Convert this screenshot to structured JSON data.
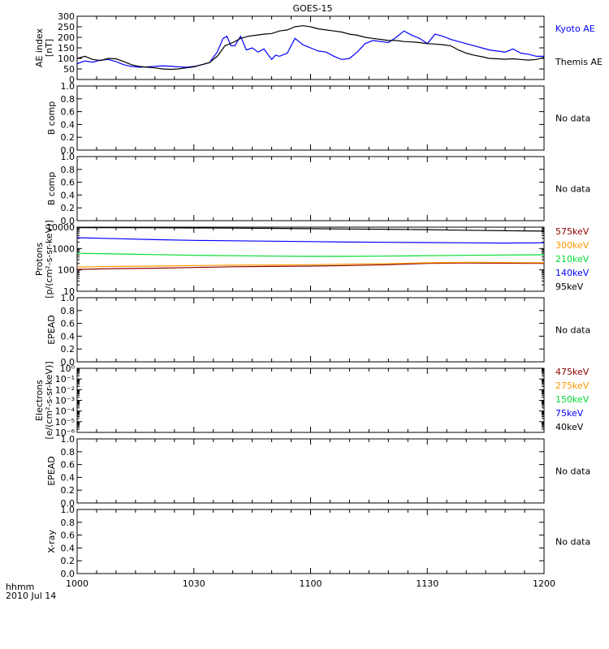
{
  "chart_data": {
    "title": "GOES-15",
    "type": "line",
    "x_axis": {
      "tick_labels": [
        "1000",
        "1030",
        "1100",
        "1130",
        "1200"
      ],
      "range_minutes": [
        0,
        120
      ],
      "time_label": "hhmm",
      "date_label": "2010 Jul 14"
    },
    "panels": [
      {
        "id": "ae",
        "ylabel_lines": [
          "AE index",
          "[nT]"
        ],
        "yscale": "linear",
        "ylim": [
          0,
          300
        ],
        "yticks": [
          "0",
          "50",
          "100",
          "150",
          "200",
          "250",
          "300"
        ],
        "ytick_values": [
          0,
          50,
          100,
          150,
          200,
          250,
          300
        ],
        "series": [
          {
            "name": "Kyoto AE",
            "color": "#0000ff",
            "x": [
              0,
              2,
              4,
              6,
              8,
              10,
              12,
              14,
              16,
              18,
              20,
              22,
              24,
              26,
              28,
              30,
              32,
              34,
              36,
              37.5,
              38.5,
              39.5,
              40.5,
              42,
              43.5,
              45,
              46.5,
              48,
              50,
              51,
              52,
              54,
              56,
              58,
              60,
              62,
              64,
              66,
              68,
              70,
              72,
              74,
              76,
              78,
              80,
              82,
              84,
              86,
              88,
              90,
              92,
              94,
              96,
              98,
              100,
              102,
              104,
              106,
              108,
              110,
              112,
              114,
              116,
              118,
              120
            ],
            "y": [
              75,
              88,
              82,
              92,
              95,
              85,
              70,
              62,
              58,
              60,
              62,
              65,
              63,
              60,
              58,
              62,
              70,
              80,
              130,
              195,
              205,
              160,
              160,
              205,
              140,
              150,
              130,
              145,
              95,
              115,
              110,
              125,
              195,
              165,
              150,
              135,
              130,
              110,
              95,
              100,
              130,
              170,
              185,
              180,
              175,
              200,
              230,
              210,
              195,
              170,
              215,
              205,
              190,
              180,
              170,
              160,
              150,
              140,
              135,
              130,
              145,
              125,
              120,
              110,
              110
            ],
            "label_color": "#0000ff"
          },
          {
            "name": "Themis AE",
            "color": "#000000",
            "x": [
              0,
              2,
              4,
              6,
              8,
              10,
              12,
              14,
              16,
              18,
              20,
              22,
              24,
              26,
              28,
              30,
              32,
              34,
              36,
              38,
              40,
              42,
              44,
              46,
              48,
              50,
              52,
              54,
              56,
              58,
              60,
              62,
              64,
              66,
              68,
              70,
              72,
              74,
              76,
              78,
              80,
              82,
              84,
              86,
              88,
              90,
              92,
              94,
              96,
              98,
              100,
              102,
              104,
              106,
              108,
              110,
              112,
              114,
              116,
              118,
              120
            ],
            "y": [
              100,
              110,
              95,
              90,
              100,
              98,
              85,
              70,
              62,
              58,
              55,
              50,
              48,
              50,
              55,
              60,
              70,
              80,
              110,
              160,
              175,
              195,
              205,
              210,
              215,
              218,
              230,
              235,
              250,
              255,
              250,
              240,
              235,
              230,
              225,
              215,
              210,
              200,
              195,
              190,
              185,
              185,
              180,
              178,
              175,
              170,
              168,
              165,
              160,
              140,
              125,
              115,
              108,
              100,
              98,
              96,
              98,
              95,
              92,
              95,
              105
            ],
            "label_color": "#000000"
          }
        ]
      },
      {
        "id": "b1",
        "ylabel_lines": [
          "B comp"
        ],
        "yscale": "linear",
        "ylim": [
          0,
          1
        ],
        "yticks": [
          "0.0",
          "0.2",
          "0.4",
          "0.6",
          "0.8",
          "1.0"
        ],
        "ytick_values": [
          0,
          0.2,
          0.4,
          0.6,
          0.8,
          1.0
        ],
        "status": "No data",
        "series": []
      },
      {
        "id": "b2",
        "ylabel_lines": [
          "B comp"
        ],
        "yscale": "linear",
        "ylim": [
          0,
          1
        ],
        "yticks": [
          "0.0",
          "0.2",
          "0.4",
          "0.6",
          "0.8",
          "1.0"
        ],
        "ytick_values": [
          0,
          0.2,
          0.4,
          0.6,
          0.8,
          1.0
        ],
        "status": "No data",
        "series": []
      },
      {
        "id": "protons",
        "ylabel_lines": [
          "Protons",
          "[p/(cm²-s-sr-keV)]"
        ],
        "yscale": "log",
        "ylim": [
          10,
          10000
        ],
        "yticks": [
          "10000",
          "1000",
          "100",
          "10"
        ],
        "ytick_values": [
          10000,
          1000,
          100,
          10
        ],
        "series": [
          {
            "name": "575keV",
            "color": "#8b0000",
            "x": [
              0,
              10,
              20,
              30,
              40,
              50,
              60,
              70,
              80,
              90,
              100,
              110,
              120
            ],
            "y": [
              105,
              115,
              120,
              130,
              140,
              145,
              150,
              160,
              175,
              200,
              210,
              205,
              200
            ]
          },
          {
            "name": "300keV",
            "color": "#ff9900",
            "x": [
              0,
              10,
              20,
              30,
              40,
              50,
              60,
              70,
              80,
              90,
              100,
              110,
              120
            ],
            "y": [
              135,
              145,
              150,
              160,
              165,
              170,
              175,
              185,
              195,
              215,
              225,
              220,
              215
            ]
          },
          {
            "name": "210keV",
            "color": "#00dd33",
            "x": [
              0,
              10,
              20,
              30,
              40,
              50,
              60,
              70,
              80,
              90,
              100,
              110,
              120
            ],
            "y": [
              600,
              560,
              520,
              480,
              460,
              440,
              430,
              430,
              440,
              460,
              480,
              500,
              510
            ]
          },
          {
            "name": "140keV",
            "color": "#0000ff",
            "x": [
              0,
              10,
              20,
              30,
              40,
              50,
              60,
              70,
              80,
              90,
              100,
              110,
              120
            ],
            "y": [
              3200,
              2900,
              2600,
              2400,
              2300,
              2200,
              2100,
              2000,
              1950,
              1900,
              1850,
              1800,
              1850
            ]
          },
          {
            "name": "95keV",
            "color": "#000000",
            "x": [
              0,
              10,
              20,
              30,
              40,
              50,
              60,
              70,
              80,
              90,
              100,
              110,
              120
            ],
            "y": [
              9500,
              9400,
              9300,
              9200,
              9000,
              8800,
              8500,
              8200,
              8000,
              7600,
              7200,
              6800,
              6500
            ]
          }
        ]
      },
      {
        "id": "epead1",
        "ylabel_lines": [
          "EPEAD"
        ],
        "yscale": "linear",
        "ylim": [
          0,
          1
        ],
        "yticks": [
          "0.0",
          "0.2",
          "0.4",
          "0.6",
          "0.8",
          "1.0"
        ],
        "ytick_values": [
          0,
          0.2,
          0.4,
          0.6,
          0.8,
          1.0
        ],
        "status": "No data",
        "series": []
      },
      {
        "id": "electrons",
        "ylabel_lines": [
          "Electrons",
          "[e/(cm²-s-sr-keV)]"
        ],
        "yscale": "log",
        "ylim": [
          1e-06,
          1
        ],
        "yticks": [
          "10⁰",
          "10⁻¹",
          "10⁻²",
          "10⁻³",
          "10⁻⁴",
          "10⁻⁵",
          "10⁻⁶"
        ],
        "ytick_values": [
          1,
          0.1,
          0.01,
          0.001,
          0.0001,
          1e-05,
          1e-06
        ],
        "legend": [
          {
            "name": "475keV",
            "color": "#8b0000"
          },
          {
            "name": "275keV",
            "color": "#ff9900"
          },
          {
            "name": "150keV",
            "color": "#00dd33"
          },
          {
            "name": "75keV",
            "color": "#0000ff"
          },
          {
            "name": "40keV",
            "color": "#000000"
          }
        ],
        "series": []
      },
      {
        "id": "epead2",
        "ylabel_lines": [
          "EPEAD"
        ],
        "yscale": "linear",
        "ylim": [
          0,
          1
        ],
        "yticks": [
          "0.0",
          "0.2",
          "0.4",
          "0.6",
          "0.8",
          "1.0"
        ],
        "ytick_values": [
          0,
          0.2,
          0.4,
          0.6,
          0.8,
          1.0
        ],
        "status": "No data",
        "series": []
      },
      {
        "id": "xray",
        "ylabel_lines": [
          "X-ray"
        ],
        "yscale": "linear",
        "ylim": [
          0,
          1
        ],
        "yticks": [
          "0.0",
          "0.2",
          "0.4",
          "0.6",
          "0.8",
          "1.0"
        ],
        "ytick_values": [
          0,
          0.2,
          0.4,
          0.6,
          0.8,
          1.0
        ],
        "status": "No data",
        "series": []
      }
    ]
  }
}
